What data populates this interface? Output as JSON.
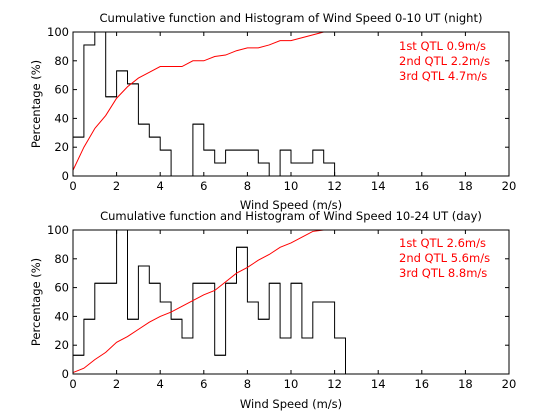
{
  "chart_data": [
    {
      "type": "histogram+line",
      "title": "Cumulative function and Histogram of Wind Speed 0-10 UT (night)",
      "xlabel": "Wind Speed (m/s)",
      "ylabel": "Percentage (%)",
      "xlim": [
        0,
        20
      ],
      "ylim": [
        0,
        100
      ],
      "xticks": [
        "0",
        "2",
        "4",
        "6",
        "8",
        "10",
        "12",
        "14",
        "16",
        "18",
        "20"
      ],
      "yticks": [
        "0",
        "20",
        "40",
        "60",
        "80",
        "100"
      ],
      "grid": false,
      "annotations": [
        "1st QTL 0.9m/s",
        "2nd QTL 2.2m/s",
        "3rd QTL 4.7m/s"
      ],
      "annotation_color": "#ff0000",
      "histogram_color": "#000000",
      "histogram_bin_width": 0.5,
      "histogram": {
        "x_start": [
          0,
          0.5,
          1,
          1.5,
          2,
          2.5,
          3,
          3.5,
          4,
          4.5,
          5,
          5.5,
          6,
          6.5,
          7,
          7.5,
          8,
          8.5,
          9,
          9.5,
          10,
          10.5,
          11,
          11.5
        ],
        "values": [
          27,
          91,
          100,
          55,
          73,
          64,
          36,
          27,
          18,
          0,
          0,
          36,
          18,
          9,
          18,
          18,
          18,
          9,
          0,
          18,
          9,
          9,
          18,
          9
        ]
      },
      "cumulative_color": "#ff0000",
      "cumulative": {
        "x": [
          0,
          0.5,
          1,
          1.5,
          2,
          2.5,
          3,
          3.5,
          4,
          4.5,
          5,
          5.5,
          6,
          6.5,
          7,
          7.5,
          8,
          8.5,
          9,
          9.5,
          10,
          10.5,
          11,
          11.5,
          12,
          20
        ],
        "y": [
          4,
          20,
          33,
          42,
          54,
          62,
          68,
          72,
          76,
          76,
          76,
          80,
          80,
          83,
          84,
          87,
          89,
          89,
          91,
          94,
          94,
          96,
          98,
          100,
          100,
          100
        ]
      }
    },
    {
      "type": "histogram+line",
      "title": "Cumulative function and Histogram of Wind Speed 10-24 UT (day)",
      "xlabel": "Wind Speed (m/s)",
      "ylabel": "Percentage (%)",
      "xlim": [
        0,
        20
      ],
      "ylim": [
        0,
        100
      ],
      "xticks": [
        "0",
        "2",
        "4",
        "6",
        "8",
        "10",
        "12",
        "14",
        "16",
        "18",
        "20"
      ],
      "yticks": [
        "0",
        "20",
        "40",
        "60",
        "80",
        "100"
      ],
      "grid": false,
      "annotations": [
        "1st QTL 2.6m/s",
        "2nd QTL 5.6m/s",
        "3rd QTL 8.8m/s"
      ],
      "annotation_color": "#ff0000",
      "histogram_color": "#000000",
      "histogram_bin_width": 0.5,
      "histogram": {
        "x_start": [
          0,
          0.5,
          1,
          1.5,
          2,
          2.5,
          3,
          3.5,
          4,
          4.5,
          5,
          5.5,
          6,
          6.5,
          7,
          7.5,
          8,
          8.5,
          9,
          9.5,
          10,
          10.5,
          11,
          11.5,
          12
        ],
        "values": [
          13,
          38,
          63,
          63,
          100,
          38,
          75,
          63,
          50,
          38,
          25,
          63,
          63,
          13,
          63,
          88,
          50,
          38,
          63,
          25,
          63,
          25,
          50,
          50,
          25
        ]
      },
      "cumulative_color": "#ff0000",
      "cumulative": {
        "x": [
          0,
          0.5,
          1,
          1.5,
          2,
          2.5,
          3,
          3.5,
          4,
          4.5,
          5,
          5.5,
          6,
          6.5,
          7,
          7.5,
          8,
          8.5,
          9,
          9.5,
          10,
          10.5,
          11,
          11.5,
          12,
          20
        ],
        "y": [
          1,
          4,
          10,
          15,
          22,
          26,
          31,
          36,
          40,
          43,
          47,
          51,
          55,
          58,
          64,
          70,
          74,
          79,
          83,
          88,
          91,
          95,
          99,
          100,
          100,
          100
        ]
      }
    }
  ]
}
